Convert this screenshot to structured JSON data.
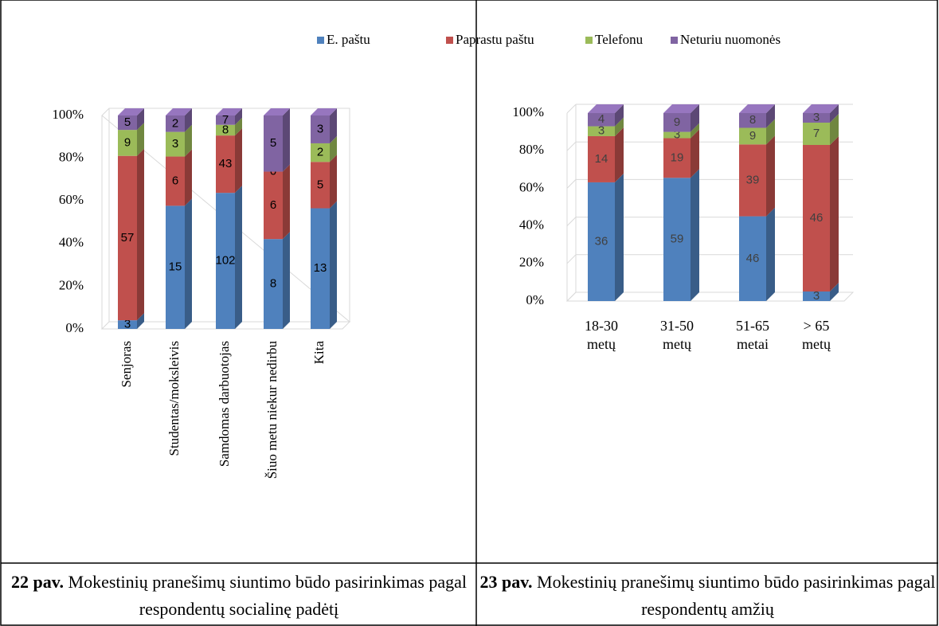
{
  "chart_data": [
    {
      "type": "bar",
      "stacked": "percent",
      "categories": [
        "Senjoras",
        "Studentas/moksleivis",
        "Samdomas darbuotojas",
        "Šiuo metu niekur nedirbu",
        "Kita"
      ],
      "series": [
        {
          "color": "#4f81bd",
          "values": [
            3,
            15,
            102,
            8,
            13
          ]
        },
        {
          "color": "#c0504d",
          "values": [
            57,
            6,
            43,
            6,
            5
          ]
        },
        {
          "color": "#9bbb59",
          "values": [
            9,
            3,
            8,
            0,
            2
          ]
        },
        {
          "color": "#8064a2",
          "values": [
            5,
            2,
            7,
            5,
            3
          ]
        }
      ],
      "ylim": [
        0,
        100
      ],
      "yticks": [
        {
          "value": 0,
          "label": "0%"
        },
        {
          "value": 20,
          "label": "20%"
        },
        {
          "value": 40,
          "label": "40%"
        },
        {
          "value": 60,
          "label": "60%"
        },
        {
          "value": 80,
          "label": "80%"
        },
        {
          "value": 100,
          "label": "100%"
        }
      ],
      "grid": false
    },
    {
      "type": "bar",
      "stacked": "percent",
      "categories": [
        "18-30 metų",
        "31-50 metų",
        "51-65 metai",
        "> 65 metų"
      ],
      "series": [
        {
          "name": "E. paštu",
          "color": "#4f81bd",
          "values": [
            36,
            59,
            46,
            3
          ]
        },
        {
          "name": "Paprastu paštu",
          "color": "#c0504d",
          "values": [
            14,
            19,
            39,
            46
          ]
        },
        {
          "name": "Telefonu",
          "color": "#9bbb59",
          "values": [
            3,
            3,
            9,
            7
          ]
        },
        {
          "name": "Neturiu nuomonės",
          "color": "#8064a2",
          "values": [
            4,
            9,
            8,
            3
          ]
        }
      ],
      "ylim": [
        0,
        100
      ],
      "yticks": [
        {
          "value": 0,
          "label": "0%"
        },
        {
          "value": 20,
          "label": "20%"
        },
        {
          "value": 40,
          "label": "40%"
        },
        {
          "value": 60,
          "label": "60%"
        },
        {
          "value": 80,
          "label": "80%"
        },
        {
          "value": 100,
          "label": "100%"
        }
      ],
      "grid": true
    }
  ],
  "captions": [
    {
      "label": "22 pav.",
      "text": "Mokestinių pranešimų siuntimo būdo pasirinkimas pagal respondentų socialinę padėtį"
    },
    {
      "label": "23 pav.",
      "text": "Mokestinių pranešimų siuntimo būdo pasirinkimas pagal respondentų amžių"
    }
  ]
}
